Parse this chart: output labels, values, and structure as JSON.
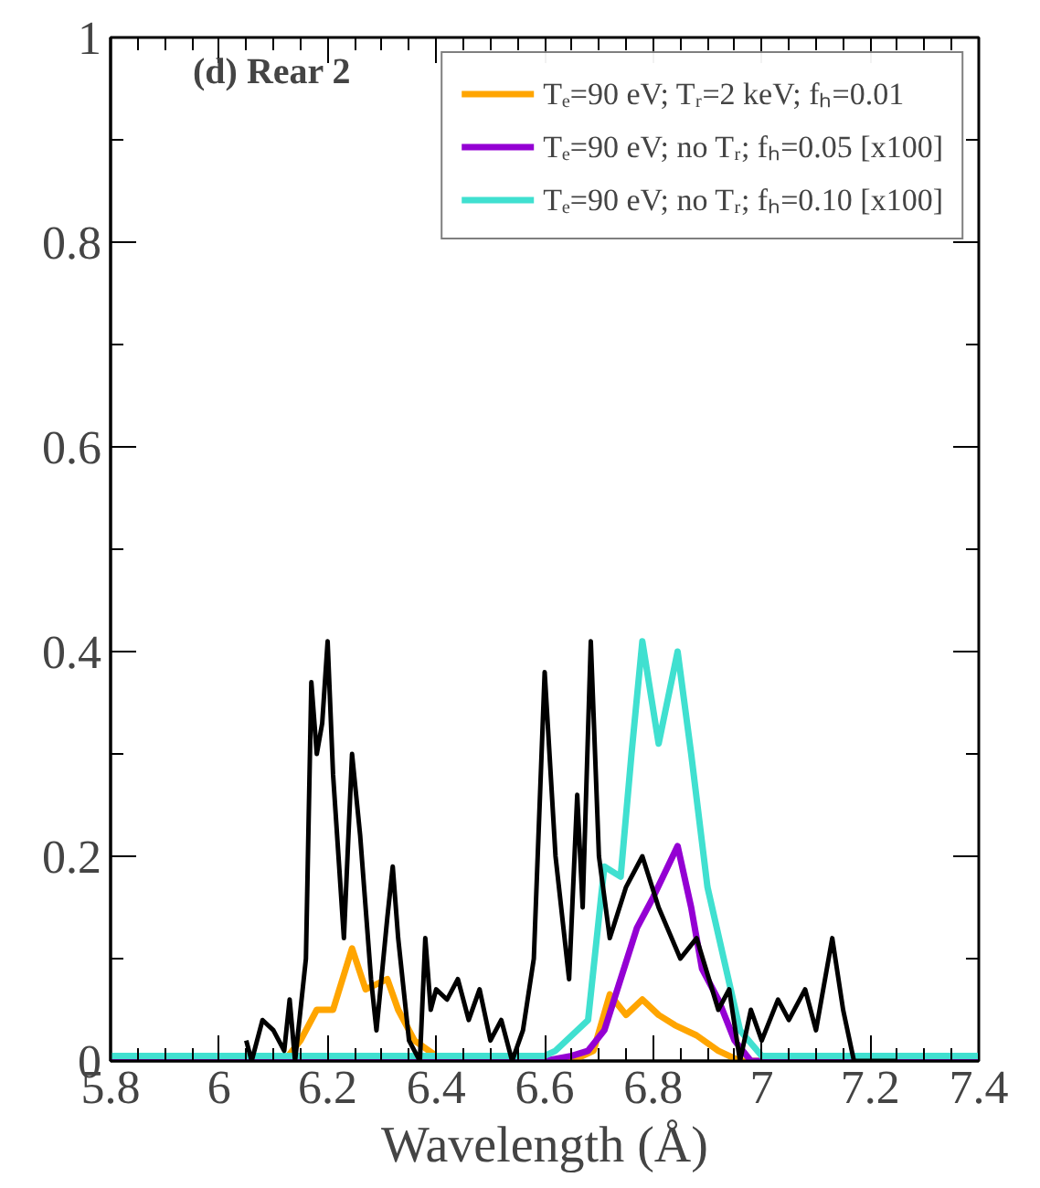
{
  "chart_data": {
    "type": "line",
    "xlabel": "Wavelength (Å)",
    "annotations": [
      "(d) Rear 2"
    ],
    "xlim": [
      5.8,
      7.4
    ],
    "ylim": [
      0,
      1
    ],
    "xticks": [
      5.8,
      6,
      6.2,
      6.4,
      6.6,
      6.8,
      7,
      7.2,
      7.4
    ],
    "yticks": [
      0,
      0.2,
      0.4,
      0.6,
      0.8,
      1
    ],
    "grid": false,
    "legend": "top right",
    "line_style": "solid",
    "marker": "none",
    "series": [
      {
        "name": "Tₑ=90 eV; Tᵣ=2 keV; fₕ=0.01",
        "color": "#ffa500",
        "x": [
          5.8,
          6.12,
          6.15,
          6.18,
          6.21,
          6.245,
          6.27,
          6.31,
          6.33,
          6.36,
          6.4,
          6.45,
          6.65,
          6.69,
          6.72,
          6.75,
          6.78,
          6.81,
          6.84,
          6.88,
          6.92,
          6.96,
          7.4
        ],
        "values": [
          0,
          0,
          0.02,
          0.05,
          0.05,
          0.11,
          0.07,
          0.08,
          0.05,
          0.02,
          0.005,
          0,
          0,
          0.01,
          0.065,
          0.045,
          0.06,
          0.045,
          0.035,
          0.025,
          0.01,
          0,
          0
        ]
      },
      {
        "name": "Tₑ=90 eV; no Tᵣ; fₕ=0.05 [x100]",
        "color": "#9400d3",
        "x": [
          5.8,
          6.6,
          6.65,
          6.68,
          6.71,
          6.74,
          6.77,
          6.8,
          6.845,
          6.87,
          6.89,
          6.92,
          6.95,
          6.98,
          7.4
        ],
        "values": [
          0,
          0,
          0.005,
          0.01,
          0.03,
          0.08,
          0.13,
          0.16,
          0.21,
          0.15,
          0.09,
          0.06,
          0.02,
          0,
          0
        ]
      },
      {
        "name": "Tₑ=90 eV; no Tᵣ; fₕ=0.10 [x100]",
        "color": "#40e0d0",
        "x": [
          5.8,
          6.6,
          6.62,
          6.68,
          6.71,
          6.74,
          6.76,
          6.78,
          6.81,
          6.845,
          6.87,
          6.9,
          6.93,
          6.96,
          7.0,
          7.4
        ],
        "values": [
          0.005,
          0.005,
          0.01,
          0.04,
          0.19,
          0.18,
          0.3,
          0.41,
          0.31,
          0.4,
          0.3,
          0.17,
          0.1,
          0.03,
          0.005,
          0.005
        ]
      },
      {
        "color": "#000000",
        "x": [
          6.05,
          6.06,
          6.08,
          6.1,
          6.12,
          6.13,
          6.14,
          6.16,
          6.17,
          6.18,
          6.19,
          6.2,
          6.21,
          6.22,
          6.23,
          6.245,
          6.26,
          6.28,
          6.29,
          6.31,
          6.32,
          6.33,
          6.35,
          6.37,
          6.38,
          6.39,
          6.4,
          6.42,
          6.44,
          6.46,
          6.48,
          6.5,
          6.52,
          6.54,
          6.56,
          6.58,
          6.6,
          6.62,
          6.645,
          6.66,
          6.67,
          6.685,
          6.7,
          6.72,
          6.75,
          6.78,
          6.81,
          6.85,
          6.88,
          6.92,
          6.94,
          6.96,
          6.98,
          7.0,
          7.03,
          7.05,
          7.08,
          7.1,
          7.13,
          7.15,
          7.17,
          7.25
        ],
        "values": [
          0.02,
          0,
          0.04,
          0.03,
          0.01,
          0.06,
          0,
          0.1,
          0.37,
          0.3,
          0.33,
          0.41,
          0.28,
          0.2,
          0.12,
          0.3,
          0.22,
          0.08,
          0.03,
          0.14,
          0.19,
          0.12,
          0.02,
          0,
          0.12,
          0.05,
          0.07,
          0.06,
          0.08,
          0.04,
          0.07,
          0.02,
          0.04,
          0,
          0.03,
          0.1,
          0.38,
          0.2,
          0.08,
          0.26,
          0.15,
          0.41,
          0.2,
          0.12,
          0.17,
          0.2,
          0.15,
          0.1,
          0.12,
          0.05,
          0.07,
          0,
          0.05,
          0.02,
          0.06,
          0.04,
          0.07,
          0.03,
          0.12,
          0.05,
          0,
          0
        ]
      }
    ]
  }
}
